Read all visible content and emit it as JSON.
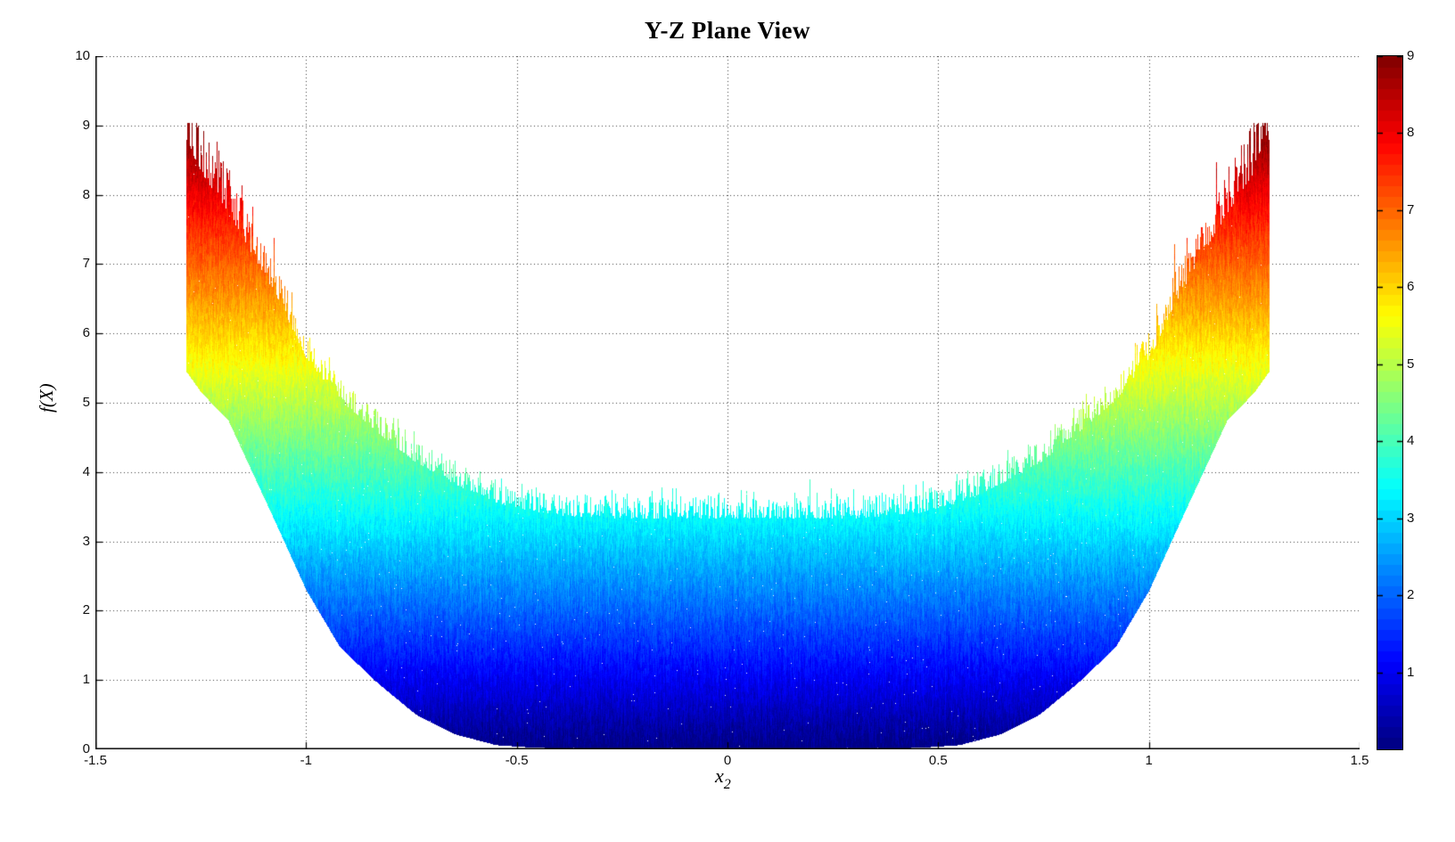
{
  "chart_data": {
    "type": "area",
    "title": "Y-Z Plane View",
    "xlabel": "x",
    "xlabel_sub": "2",
    "ylabel": "f(X)",
    "xlim": [
      -1.5,
      1.5
    ],
    "ylim": [
      0,
      10
    ],
    "xticks": [
      -1.5,
      -1,
      -0.5,
      0,
      0.5,
      1,
      1.5
    ],
    "xtick_labels": [
      "-1.5",
      "-1",
      "-0.5",
      "0",
      "0.5",
      "1",
      "1.5"
    ],
    "yticks": [
      0,
      1,
      2,
      3,
      4,
      5,
      6,
      7,
      8,
      9,
      10
    ],
    "ytick_labels": [
      "0",
      "1",
      "2",
      "3",
      "4",
      "5",
      "6",
      "7",
      "8",
      "9",
      "10"
    ],
    "grid": true,
    "grid_style": "dotted",
    "colormap": "jet",
    "colorbar": {
      "min": 0,
      "max": 9,
      "ticks": [
        1,
        2,
        3,
        4,
        5,
        6,
        7,
        8,
        9
      ],
      "tick_labels": [
        "1",
        "2",
        "3",
        "4",
        "5",
        "6",
        "7",
        "8",
        "9"
      ]
    },
    "projection": {
      "description": "Side (Y-Z plane) projection of noisy 3D surface; band between envelopes filled with height-colored jet speckle texture, spiky upper edge, vertical cliff at x extents",
      "x_extent": 1.285,
      "f_max": 9.0,
      "lower_envelope": [
        [
          0,
          0
        ],
        [
          0.45,
          0.02
        ],
        [
          0.55,
          0.06
        ],
        [
          0.65,
          0.22
        ],
        [
          0.74,
          0.5
        ],
        [
          0.83,
          0.95
        ],
        [
          0.92,
          1.47
        ],
        [
          1.0,
          2.29
        ],
        [
          1.08,
          3.36
        ],
        [
          1.185,
          4.74
        ],
        [
          1.25,
          5.15
        ],
        [
          1.285,
          5.45
        ]
      ],
      "upper_envelope": [
        [
          0,
          3.55
        ],
        [
          0.3,
          3.55
        ],
        [
          0.45,
          3.62
        ],
        [
          0.55,
          3.78
        ],
        [
          0.65,
          4.05
        ],
        [
          0.74,
          4.35
        ],
        [
          0.83,
          4.78
        ],
        [
          0.92,
          5.25
        ],
        [
          1.0,
          5.85
        ],
        [
          1.08,
          6.85
        ],
        [
          1.185,
          7.95
        ],
        [
          1.25,
          8.55
        ],
        [
          1.285,
          9.0
        ]
      ]
    }
  }
}
